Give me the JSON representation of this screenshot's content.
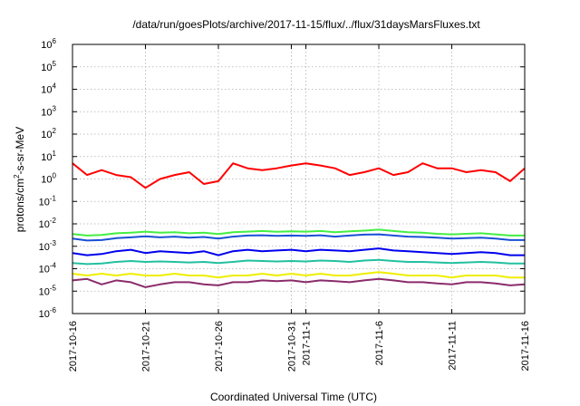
{
  "chart_data": {
    "type": "line",
    "title": "/data/run/goesPlots/archive/2017-11-15/flux/../flux/31daysMarsFluxes.txt",
    "xlabel": "Coordinated Universal Time (UTC)",
    "ylabel": "protons/cm2-s-sr-MeV",
    "ylabel_parts": {
      "a": "protons/cm",
      "sup": "2",
      "b": "-s-sr-MeV"
    },
    "y_scale": "log",
    "ylim": [
      1e-06,
      1000000.0
    ],
    "y_ticks": [
      {
        "v": 1e-06,
        "base": "10",
        "exp": "-6"
      },
      {
        "v": 1e-05,
        "base": "10",
        "exp": "-5"
      },
      {
        "v": 0.0001,
        "base": "10",
        "exp": "-4"
      },
      {
        "v": 0.001,
        "base": "10",
        "exp": "-3"
      },
      {
        "v": 0.01,
        "base": "10",
        "exp": "-2"
      },
      {
        "v": 0.1,
        "base": "10",
        "exp": "-1"
      },
      {
        "v": 1,
        "base": "10",
        "exp": "0"
      },
      {
        "v": 10.0,
        "base": "10",
        "exp": "1"
      },
      {
        "v": 100.0,
        "base": "10",
        "exp": "2"
      },
      {
        "v": 1000.0,
        "base": "10",
        "exp": "3"
      },
      {
        "v": 10000.0,
        "base": "10",
        "exp": "4"
      },
      {
        "v": 100000.0,
        "base": "10",
        "exp": "5"
      },
      {
        "v": 1000000.0,
        "base": "10",
        "exp": "6"
      }
    ],
    "xlim": [
      "2017-10-16",
      "2017-11-16"
    ],
    "x_ticks": [
      {
        "date": "2017-10-16",
        "label": "2017-10-16"
      },
      {
        "date": "2017-10-21",
        "label": "2017-10-21"
      },
      {
        "date": "2017-10-26",
        "label": "2017-10-26"
      },
      {
        "date": "2017-10-31",
        "label": "2017-10-31"
      },
      {
        "date": "2017-11-01",
        "label": "2017-11-1"
      },
      {
        "date": "2017-11-06",
        "label": "2017-11-6"
      },
      {
        "date": "2017-11-11",
        "label": "2017-11-11"
      },
      {
        "date": "2017-11-16",
        "label": "2017-11-16"
      }
    ],
    "grid": true,
    "legend": "none",
    "series": [
      {
        "color": "#ff0000",
        "x": [
          "2017-10-16",
          "2017-10-17",
          "2017-10-18",
          "2017-10-19",
          "2017-10-20",
          "2017-10-21",
          "2017-10-22",
          "2017-10-23",
          "2017-10-24",
          "2017-10-25",
          "2017-10-26",
          "2017-10-27",
          "2017-10-28",
          "2017-10-29",
          "2017-10-30",
          "2017-10-31",
          "2017-11-01",
          "2017-11-02",
          "2017-11-03",
          "2017-11-04",
          "2017-11-05",
          "2017-11-06",
          "2017-11-07",
          "2017-11-08",
          "2017-11-09",
          "2017-11-10",
          "2017-11-11",
          "2017-11-12",
          "2017-11-13",
          "2017-11-14",
          "2017-11-15",
          "2017-11-16"
        ],
        "values": [
          5,
          1.5,
          2.5,
          1.5,
          1.2,
          0.4,
          1.0,
          1.5,
          2.0,
          0.6,
          0.8,
          5,
          3,
          2.5,
          3,
          4,
          5,
          4,
          3,
          1.5,
          2.0,
          3,
          1.5,
          2,
          5,
          3,
          3,
          2,
          2.5,
          2,
          0.8,
          3
        ]
      },
      {
        "color": "#44ee44",
        "x": [
          "2017-10-16",
          "2017-10-17",
          "2017-10-18",
          "2017-10-19",
          "2017-10-20",
          "2017-10-21",
          "2017-10-22",
          "2017-10-23",
          "2017-10-24",
          "2017-10-25",
          "2017-10-26",
          "2017-10-27",
          "2017-10-28",
          "2017-10-29",
          "2017-10-30",
          "2017-10-31",
          "2017-11-01",
          "2017-11-02",
          "2017-11-03",
          "2017-11-04",
          "2017-11-05",
          "2017-11-06",
          "2017-11-07",
          "2017-11-08",
          "2017-11-09",
          "2017-11-10",
          "2017-11-11",
          "2017-11-12",
          "2017-11-13",
          "2017-11-14",
          "2017-11-15",
          "2017-11-16"
        ],
        "values": [
          0.0035,
          0.003,
          0.0032,
          0.0038,
          0.004,
          0.0045,
          0.004,
          0.0042,
          0.0038,
          0.004,
          0.0035,
          0.0042,
          0.0045,
          0.0048,
          0.0044,
          0.0046,
          0.0045,
          0.0048,
          0.0042,
          0.0046,
          0.005,
          0.0055,
          0.0048,
          0.0042,
          0.004,
          0.0036,
          0.0034,
          0.0036,
          0.0038,
          0.0034,
          0.003,
          0.003
        ]
      },
      {
        "color": "#1a4fd6",
        "x": [
          "2017-10-16",
          "2017-10-17",
          "2017-10-18",
          "2017-10-19",
          "2017-10-20",
          "2017-10-21",
          "2017-10-22",
          "2017-10-23",
          "2017-10-24",
          "2017-10-25",
          "2017-10-26",
          "2017-10-27",
          "2017-10-28",
          "2017-10-29",
          "2017-10-30",
          "2017-10-31",
          "2017-11-01",
          "2017-11-02",
          "2017-11-03",
          "2017-11-04",
          "2017-11-05",
          "2017-11-06",
          "2017-11-07",
          "2017-11-08",
          "2017-11-09",
          "2017-11-10",
          "2017-11-11",
          "2017-11-12",
          "2017-11-13",
          "2017-11-14",
          "2017-11-15",
          "2017-11-16"
        ],
        "values": [
          0.0022,
          0.0018,
          0.0019,
          0.0023,
          0.0025,
          0.0028,
          0.0025,
          0.0027,
          0.0024,
          0.0026,
          0.0022,
          0.0027,
          0.003,
          0.0031,
          0.0029,
          0.003,
          0.0029,
          0.0031,
          0.0027,
          0.003,
          0.0033,
          0.0034,
          0.003,
          0.0027,
          0.0026,
          0.0024,
          0.0022,
          0.0023,
          0.0024,
          0.0022,
          0.0019,
          0.0019
        ]
      },
      {
        "color": "#0000ee",
        "x": [
          "2017-10-16",
          "2017-10-17",
          "2017-10-18",
          "2017-10-19",
          "2017-10-20",
          "2017-10-21",
          "2017-10-22",
          "2017-10-23",
          "2017-10-24",
          "2017-10-25",
          "2017-10-26",
          "2017-10-27",
          "2017-10-28",
          "2017-10-29",
          "2017-10-30",
          "2017-10-31",
          "2017-11-01",
          "2017-11-02",
          "2017-11-03",
          "2017-11-04",
          "2017-11-05",
          "2017-11-06",
          "2017-11-07",
          "2017-11-08",
          "2017-11-09",
          "2017-11-10",
          "2017-11-11",
          "2017-11-12",
          "2017-11-13",
          "2017-11-14",
          "2017-11-15",
          "2017-11-16"
        ],
        "values": [
          0.0005,
          0.0004,
          0.00045,
          0.0006,
          0.0007,
          0.0005,
          0.0006,
          0.00055,
          0.0005,
          0.0006,
          0.0004,
          0.0006,
          0.0007,
          0.0006,
          0.00065,
          0.0007,
          0.0006,
          0.0007,
          0.00065,
          0.0006,
          0.0007,
          0.0008,
          0.00065,
          0.0006,
          0.00055,
          0.0005,
          0.00045,
          0.0005,
          0.00055,
          0.0005,
          0.0004,
          0.0004
        ]
      },
      {
        "color": "#22c0a0",
        "x": [
          "2017-10-16",
          "2017-10-17",
          "2017-10-18",
          "2017-10-19",
          "2017-10-20",
          "2017-10-21",
          "2017-10-22",
          "2017-10-23",
          "2017-10-24",
          "2017-10-25",
          "2017-10-26",
          "2017-10-27",
          "2017-10-28",
          "2017-10-29",
          "2017-10-30",
          "2017-10-31",
          "2017-11-01",
          "2017-11-02",
          "2017-11-03",
          "2017-11-04",
          "2017-11-05",
          "2017-11-06",
          "2017-11-07",
          "2017-11-08",
          "2017-11-09",
          "2017-11-10",
          "2017-11-11",
          "2017-11-12",
          "2017-11-13",
          "2017-11-14",
          "2017-11-15",
          "2017-11-16"
        ],
        "values": [
          0.00018,
          0.00016,
          0.00017,
          0.0002,
          0.00022,
          0.0002,
          0.00021,
          0.0002,
          0.00019,
          0.0002,
          0.00018,
          0.0002,
          0.00023,
          0.00022,
          0.00021,
          0.00022,
          0.00021,
          0.00023,
          0.00022,
          0.0002,
          0.00023,
          0.00025,
          0.00022,
          0.0002,
          0.0002,
          0.00019,
          0.00018,
          0.00019,
          0.0002,
          0.00019,
          0.00017,
          0.00017
        ]
      },
      {
        "color": "#eeee00",
        "x": [
          "2017-10-16",
          "2017-10-17",
          "2017-10-18",
          "2017-10-19",
          "2017-10-20",
          "2017-10-21",
          "2017-10-22",
          "2017-10-23",
          "2017-10-24",
          "2017-10-25",
          "2017-10-26",
          "2017-10-27",
          "2017-10-28",
          "2017-10-29",
          "2017-10-30",
          "2017-10-31",
          "2017-11-01",
          "2017-11-02",
          "2017-11-03",
          "2017-11-04",
          "2017-11-05",
          "2017-11-06",
          "2017-11-07",
          "2017-11-08",
          "2017-11-09",
          "2017-11-10",
          "2017-11-11",
          "2017-11-12",
          "2017-11-13",
          "2017-11-14",
          "2017-11-15",
          "2017-11-16"
        ],
        "values": [
          6e-05,
          5e-05,
          6e-05,
          5e-05,
          6e-05,
          5e-05,
          5e-05,
          6e-05,
          5e-05,
          5e-05,
          4e-05,
          5e-05,
          5e-05,
          6e-05,
          5e-05,
          6e-05,
          5e-05,
          6e-05,
          5e-05,
          5e-05,
          6e-05,
          7e-05,
          6e-05,
          5e-05,
          5e-05,
          5e-05,
          4e-05,
          5e-05,
          5e-05,
          5e-05,
          4e-05,
          4e-05
        ]
      },
      {
        "color": "#8b2c6b",
        "x": [
          "2017-10-16",
          "2017-10-17",
          "2017-10-18",
          "2017-10-19",
          "2017-10-20",
          "2017-10-21",
          "2017-10-22",
          "2017-10-23",
          "2017-10-24",
          "2017-10-25",
          "2017-10-26",
          "2017-10-27",
          "2017-10-28",
          "2017-10-29",
          "2017-10-30",
          "2017-10-31",
          "2017-11-01",
          "2017-11-02",
          "2017-11-03",
          "2017-11-04",
          "2017-11-05",
          "2017-11-06",
          "2017-11-07",
          "2017-11-08",
          "2017-11-09",
          "2017-11-10",
          "2017-11-11",
          "2017-11-12",
          "2017-11-13",
          "2017-11-14",
          "2017-11-15",
          "2017-11-16"
        ],
        "values": [
          3e-05,
          3.5e-05,
          2e-05,
          3e-05,
          2.5e-05,
          1.5e-05,
          2e-05,
          2.5e-05,
          2.5e-05,
          2e-05,
          1.8e-05,
          2.5e-05,
          2.5e-05,
          3e-05,
          2.8e-05,
          3e-05,
          2.5e-05,
          3e-05,
          2.8e-05,
          2.5e-05,
          3e-05,
          3.5e-05,
          3e-05,
          2.5e-05,
          2.5e-05,
          2.2e-05,
          2e-05,
          2.5e-05,
          2.5e-05,
          2.2e-05,
          1.8e-05,
          2e-05
        ]
      }
    ]
  }
}
